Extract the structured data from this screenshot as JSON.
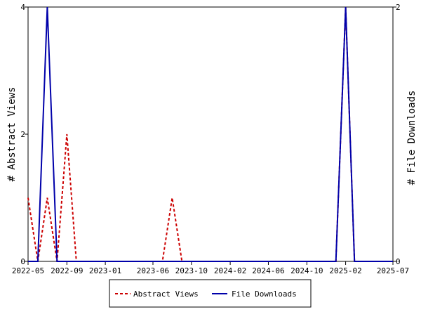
{
  "chart_data": {
    "type": "line",
    "title": "",
    "x_ticks": [
      "2022-05",
      "2022-09",
      "2023-01",
      "2023-06",
      "2023-10",
      "2024-02",
      "2024-06",
      "2024-10",
      "2025-02",
      "2025-07"
    ],
    "x_range": [
      "2022-05-01",
      "2025-07-01"
    ],
    "y_left": {
      "label": "# Abstract Views",
      "ticks": [
        "0",
        "2",
        "4"
      ],
      "range": [
        0,
        4
      ]
    },
    "y_right": {
      "label": "# File Downloads",
      "ticks": [
        "0",
        "2"
      ],
      "range": [
        0,
        2
      ]
    },
    "x_dates": [
      "2022-05-01",
      "2022-06-01",
      "2022-07-01",
      "2022-08-01",
      "2022-09-01",
      "2022-10-01",
      "2022-11-01",
      "2022-12-01",
      "2023-01-01",
      "2023-02-01",
      "2023-03-01",
      "2023-04-01",
      "2023-05-01",
      "2023-06-01",
      "2023-07-01",
      "2023-08-01",
      "2023-09-01",
      "2023-10-01",
      "2023-11-01",
      "2023-12-01",
      "2024-01-01",
      "2024-02-01",
      "2024-03-01",
      "2024-04-01",
      "2024-05-01",
      "2024-06-01",
      "2024-07-01",
      "2024-08-01",
      "2024-09-01",
      "2024-10-01",
      "2024-11-01",
      "2024-12-01",
      "2025-01-01",
      "2025-02-01",
      "2025-03-01",
      "2025-04-01",
      "2025-05-01",
      "2025-06-01",
      "2025-07-01"
    ],
    "series": [
      {
        "name": "Abstract Views",
        "axis": "left",
        "color": "#cc0000",
        "style": "dashed",
        "values": [
          1,
          0,
          1,
          0,
          2,
          0,
          0,
          0,
          0,
          0,
          0,
          0,
          0,
          0,
          0,
          1,
          0,
          0,
          0,
          0,
          0,
          0,
          0,
          0,
          0,
          0,
          0,
          0,
          0,
          0,
          0,
          0,
          0,
          4,
          0,
          0,
          0,
          0,
          0
        ]
      },
      {
        "name": "File Downloads",
        "axis": "right",
        "color": "#0000aa",
        "style": "solid",
        "values": [
          0,
          0,
          2,
          0,
          0,
          0,
          0,
          0,
          0,
          0,
          0,
          0,
          0,
          0,
          0,
          0,
          0,
          0,
          0,
          0,
          0,
          0,
          0,
          0,
          0,
          0,
          0,
          0,
          0,
          0,
          0,
          0,
          0,
          2,
          0,
          0,
          0,
          0,
          0
        ]
      }
    ],
    "legend_position": "bottom",
    "grid": false
  }
}
